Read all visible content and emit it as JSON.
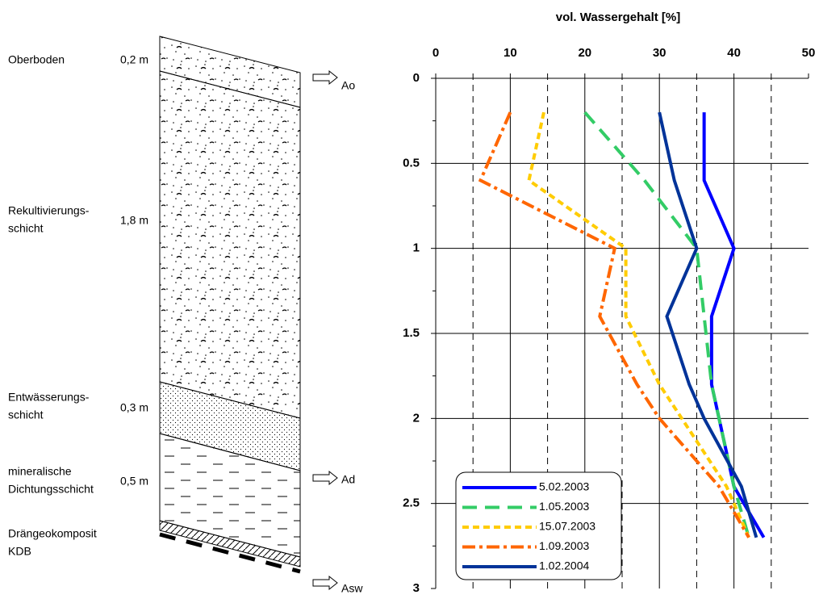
{
  "profile": {
    "layers": [
      {
        "name": [
          "Oberboden"
        ],
        "thickness": "0,2 m"
      },
      {
        "name": [
          "Rekultivierungs-",
          "schicht"
        ],
        "thickness": "1,8 m"
      },
      {
        "name": [
          "Entwässerungs-",
          "schicht"
        ],
        "thickness": "0,3 m"
      },
      {
        "name": [
          "mineralische",
          "Dichtungsschicht"
        ],
        "thickness": "0,5 m"
      },
      {
        "name": [
          "Drängeokomposit",
          "KDB"
        ]
      }
    ],
    "outflows": [
      "Ao",
      "Ad",
      "Asw"
    ]
  },
  "chart_data": {
    "type": "line",
    "title": "vol. Wassergehalt [%]",
    "y": [
      0.2,
      0.6,
      1.0,
      1.4,
      1.8,
      2.0,
      2.4,
      2.7
    ],
    "series": [
      {
        "name": "5.02.2003",
        "color": "#0000ff",
        "style": "solid",
        "values": [
          36,
          36,
          40,
          37,
          37,
          38,
          40,
          44
        ]
      },
      {
        "name": "1.05.2003",
        "color": "#33cc66",
        "style": "long-dash",
        "values": [
          20,
          28,
          35,
          36,
          37,
          38,
          40,
          42
        ]
      },
      {
        "name": "15.07.2003",
        "color": "#ffcc00",
        "style": "dash",
        "values": [
          14.5,
          12.5,
          25.5,
          25.5,
          30,
          33,
          39,
          42
        ]
      },
      {
        "name": "1.09.2003",
        "color": "#ff6600",
        "style": "dash-dot",
        "values": [
          10,
          6,
          24,
          22,
          27,
          30,
          38,
          42
        ]
      },
      {
        "name": "1.02.2004",
        "color": "#003399",
        "style": "solid",
        "values": [
          30,
          32,
          35,
          31,
          34,
          36,
          41,
          43
        ]
      }
    ],
    "xlim": [
      0,
      50
    ],
    "xticks": [
      0,
      10,
      20,
      30,
      40,
      50
    ],
    "xminor_ticks": [
      5,
      15,
      25,
      35,
      45
    ],
    "ylim": [
      0,
      3
    ],
    "yticks": [
      0,
      0.5,
      1,
      1.5,
      2,
      2.5,
      3
    ],
    "yminor_ticks": [
      0.25,
      0.75,
      1.25,
      1.75,
      2.25,
      2.75
    ],
    "grid": true,
    "legend": "lower-left"
  }
}
